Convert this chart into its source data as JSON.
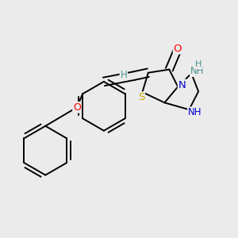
{
  "bg_color": "#ebebeb",
  "atom_colors": {
    "C": "#000000",
    "N": "#0000cd",
    "O": "#ff0000",
    "S": "#ccaa00",
    "H": "#4a9090"
  },
  "bond_color": "#000000",
  "bond_lw": 1.4,
  "figsize": [
    3.0,
    3.0
  ],
  "dpi": 100,
  "xlim": [
    0.0,
    1.0
  ],
  "ylim": [
    0.1,
    1.0
  ]
}
